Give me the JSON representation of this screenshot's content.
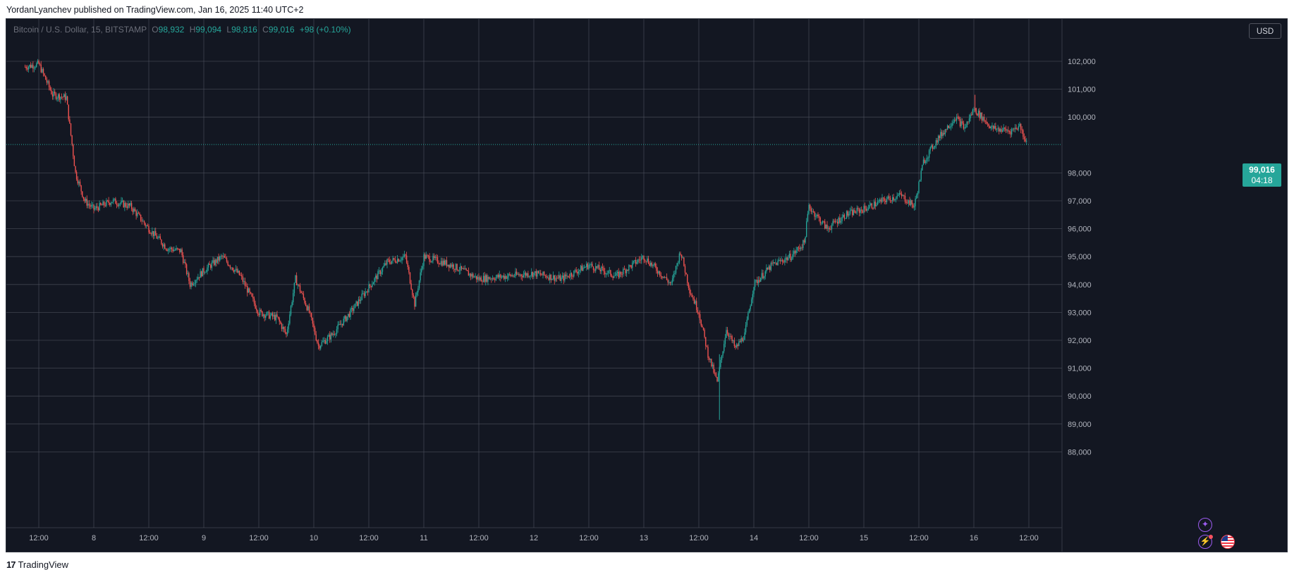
{
  "header": {
    "published_by": "YordanLyanchev published on TradingView.com, Jan 16, 2025 11:40 UTC+2"
  },
  "legend": {
    "symbol": "Bitcoin / U.S. Dollar, 15, BITSTAMP",
    "o_label": "O",
    "o_value": "98,932",
    "h_label": "H",
    "h_value": "99,094",
    "l_label": "L",
    "l_value": "98,816",
    "c_label": "C",
    "c_value": "99,016",
    "change": "+98 (+0.10%)"
  },
  "currency_button": "USD",
  "current_price": {
    "value": "99,016",
    "countdown": "04:18"
  },
  "footer": {
    "logo": "17",
    "brand": "TradingView"
  },
  "colors": {
    "background": "#131722",
    "grid": "#4a4e5a",
    "up": "#26a69a",
    "down": "#ef5350",
    "axis_text": "#b2b5be",
    "accent_purple": "#9c5cf0"
  },
  "icons": [
    "star-badge-icon",
    "lightning-badge-icon",
    "us-flag-icon",
    "tradingview-logo-icon"
  ],
  "chart_data": {
    "type": "candlestick",
    "title": "Bitcoin / U.S. Dollar, 15, BITSTAMP",
    "interval": "15",
    "x_ticks": [
      "12:00",
      "8",
      "12:00",
      "9",
      "12:00",
      "10",
      "12:00",
      "11",
      "12:00",
      "12",
      "12:00",
      "13",
      "12:00",
      "14",
      "12:00",
      "15",
      "12:00",
      "16",
      "12:00"
    ],
    "y_ticks": [
      "102,000",
      "101,000",
      "100,000",
      "98,000",
      "97,000",
      "96,000",
      "95,000",
      "94,000",
      "93,000",
      "92,000",
      "91,000",
      "90,000",
      "89,000",
      "88,000"
    ],
    "ylim": [
      88000,
      102500
    ],
    "current_price": 99016,
    "price_path": [
      {
        "x": "Jan 7 09:00",
        "y": 101800
      },
      {
        "x": "Jan 7 12:00",
        "y": 101900
      },
      {
        "x": "Jan 7 15:00",
        "y": 100800
      },
      {
        "x": "Jan 7 18:00",
        "y": 100700
      },
      {
        "x": "Jan 7 20:00",
        "y": 98000
      },
      {
        "x": "Jan 7 22:00",
        "y": 97000
      },
      {
        "x": "Jan 8 00:00",
        "y": 96700
      },
      {
        "x": "Jan 8 04:00",
        "y": 97000
      },
      {
        "x": "Jan 8 08:00",
        "y": 96800
      },
      {
        "x": "Jan 8 12:00",
        "y": 96000
      },
      {
        "x": "Jan 8 16:00",
        "y": 95300
      },
      {
        "x": "Jan 8 19:00",
        "y": 95200
      },
      {
        "x": "Jan 8 21:00",
        "y": 94000
      },
      {
        "x": "Jan 9 00:00",
        "y": 94500
      },
      {
        "x": "Jan 9 04:00",
        "y": 95000
      },
      {
        "x": "Jan 9 08:00",
        "y": 94300
      },
      {
        "x": "Jan 9 12:00",
        "y": 93000
      },
      {
        "x": "Jan 9 16:00",
        "y": 92800
      },
      {
        "x": "Jan 9 18:00",
        "y": 92200
      },
      {
        "x": "Jan 9 20:00",
        "y": 94200
      },
      {
        "x": "Jan 9 23:00",
        "y": 93000
      },
      {
        "x": "Jan 10 01:00",
        "y": 91800
      },
      {
        "x": "Jan 10 04:00",
        "y": 92200
      },
      {
        "x": "Jan 10 08:00",
        "y": 93000
      },
      {
        "x": "Jan 10 12:00",
        "y": 93900
      },
      {
        "x": "Jan 10 16:00",
        "y": 94800
      },
      {
        "x": "Jan 10 20:00",
        "y": 95000
      },
      {
        "x": "Jan 10 22:00",
        "y": 93300
      },
      {
        "x": "Jan 11 00:00",
        "y": 95000
      },
      {
        "x": "Jan 11 06:00",
        "y": 94700
      },
      {
        "x": "Jan 11 12:00",
        "y": 94200
      },
      {
        "x": "Jan 11 18:00",
        "y": 94300
      },
      {
        "x": "Jan 12 00:00",
        "y": 94400
      },
      {
        "x": "Jan 12 06:00",
        "y": 94200
      },
      {
        "x": "Jan 12 12:00",
        "y": 94700
      },
      {
        "x": "Jan 12 18:00",
        "y": 94300
      },
      {
        "x": "Jan 13 00:00",
        "y": 95000
      },
      {
        "x": "Jan 13 06:00",
        "y": 94000
      },
      {
        "x": "Jan 13 08:00",
        "y": 95200
      },
      {
        "x": "Jan 13 10:00",
        "y": 93800
      },
      {
        "x": "Jan 13 12:00",
        "y": 93000
      },
      {
        "x": "Jan 13 14:00",
        "y": 91500
      },
      {
        "x": "Jan 13 16:00",
        "y": 90500
      },
      {
        "x": "Jan 13 18:00",
        "y": 92400
      },
      {
        "x": "Jan 13 20:00",
        "y": 91700
      },
      {
        "x": "Jan 13 22:00",
        "y": 92200
      },
      {
        "x": "Jan 14 00:00",
        "y": 94000
      },
      {
        "x": "Jan 14 04:00",
        "y": 94700
      },
      {
        "x": "Jan 14 08:00",
        "y": 95000
      },
      {
        "x": "Jan 14 11:00",
        "y": 95500
      },
      {
        "x": "Jan 14 12:00",
        "y": 96800
      },
      {
        "x": "Jan 14 16:00",
        "y": 96000
      },
      {
        "x": "Jan 14 20:00",
        "y": 96500
      },
      {
        "x": "Jan 15 00:00",
        "y": 96700
      },
      {
        "x": "Jan 15 04:00",
        "y": 97000
      },
      {
        "x": "Jan 15 08:00",
        "y": 97200
      },
      {
        "x": "Jan 15 11:00",
        "y": 96800
      },
      {
        "x": "Jan 15 13:00",
        "y": 98400
      },
      {
        "x": "Jan 15 16:00",
        "y": 99200
      },
      {
        "x": "Jan 15 20:00",
        "y": 100000
      },
      {
        "x": "Jan 15 22:00",
        "y": 99600
      },
      {
        "x": "Jan 16 00:00",
        "y": 100300
      },
      {
        "x": "Jan 16 04:00",
        "y": 99600
      },
      {
        "x": "Jan 16 08:00",
        "y": 99500
      },
      {
        "x": "Jan 16 10:00",
        "y": 99700
      },
      {
        "x": "Jan 16 11:40",
        "y": 99016
      }
    ],
    "extremes": {
      "high": 100800,
      "low": 89150
    }
  }
}
